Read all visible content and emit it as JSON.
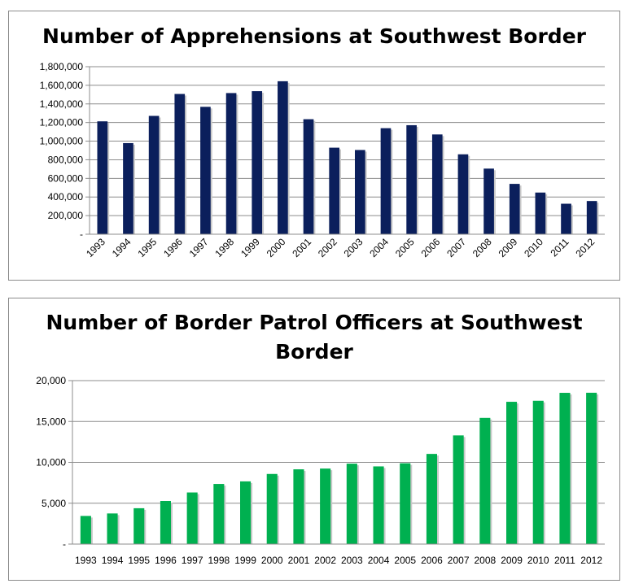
{
  "chart_data": [
    {
      "type": "bar",
      "title": "Number of Apprehensions at Southwest Border",
      "categories": [
        "1993",
        "1994",
        "1995",
        "1996",
        "1997",
        "1998",
        "1999",
        "2000",
        "2001",
        "2002",
        "2003",
        "2004",
        "2005",
        "2006",
        "2007",
        "2008",
        "2009",
        "2010",
        "2011",
        "2012"
      ],
      "values": [
        1212886,
        979101,
        1271390,
        1507020,
        1368707,
        1516680,
        1537000,
        1643679,
        1235718,
        929809,
        905065,
        1139282,
        1171396,
        1071972,
        858638,
        705005,
        540865,
        447731,
        327577,
        356873
      ],
      "ylim": [
        0,
        1800000
      ],
      "yticks": [
        "-",
        "200,000",
        "400,000",
        "600,000",
        "800,000",
        "1,000,000",
        "1,200,000",
        "1,400,000",
        "1,600,000",
        "1,800,000"
      ],
      "grid": true,
      "color": "#0b1f5c"
    },
    {
      "type": "bar",
      "title_lines": [
        "Number of Border Patrol Officers at Southwest",
        "Border"
      ],
      "categories": [
        "1993",
        "1994",
        "1995",
        "1996",
        "1997",
        "1998",
        "1999",
        "2000",
        "2001",
        "2002",
        "2003",
        "2004",
        "2005",
        "2006",
        "2007",
        "2008",
        "2009",
        "2010",
        "2011",
        "2012"
      ],
      "values": [
        3444,
        3747,
        4388,
        5273,
        6315,
        7357,
        7673,
        8580,
        9147,
        9239,
        9840,
        9506,
        9891,
        11032,
        13297,
        15442,
        17408,
        17535,
        18506,
        18516
      ],
      "ylim": [
        0,
        20000
      ],
      "yticks": [
        "-",
        "5,000",
        "10,000",
        "15,000",
        "20,000"
      ],
      "grid": true,
      "color": "#00b050"
    }
  ]
}
